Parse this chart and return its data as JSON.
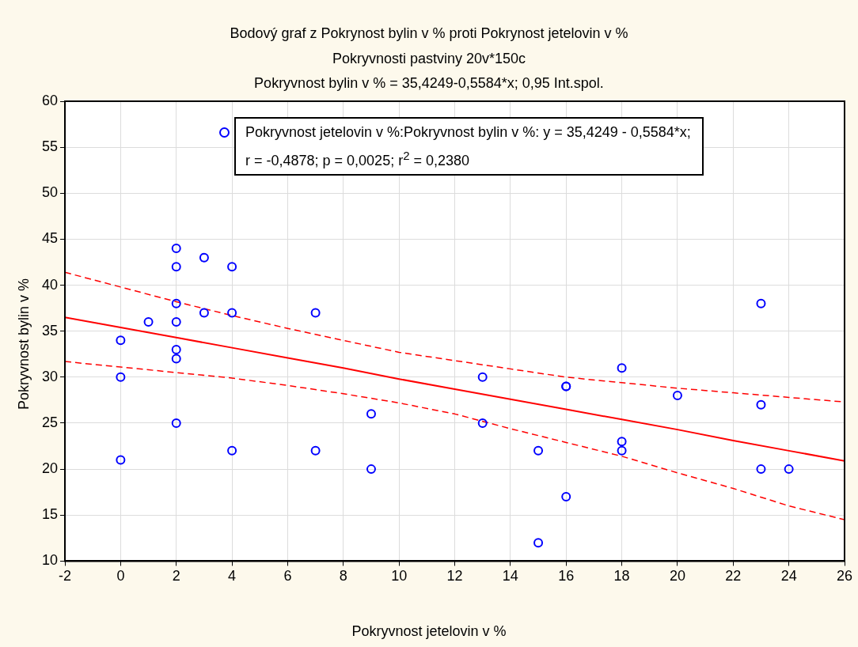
{
  "chart_data": {
    "type": "scatter",
    "title": "Bodový graf z Pokrynost bylin v % proti Pokrynost jetelovin v %",
    "subtitle": "Pokryvnosti pastviny 20v*150c",
    "annotations": [
      "Pokryvnost bylin v % = 35,4249-0,5584*x; 0,95 Int.spol."
    ],
    "xlabel": "Pokryvnost jetelovin v %",
    "ylabel": "Pokryvnost bylin v %",
    "xlim": [
      -2,
      26
    ],
    "xticks": [
      -2,
      0,
      2,
      4,
      6,
      8,
      10,
      12,
      14,
      16,
      18,
      20,
      22,
      24,
      26
    ],
    "ylim": [
      10,
      60
    ],
    "yticks": [
      10,
      15,
      20,
      25,
      30,
      35,
      40,
      45,
      50,
      55,
      60
    ],
    "grid": true,
    "legend": "top",
    "marker": "circle",
    "series": [
      {
        "name": "Pokryvnost jetelovin v %:Pokryvnost bylin v %:   y = 35,4249 - 0,5584*x;\nr = -0,4878; p = 0,0025; r$^{2}$ = 0,2380",
        "color": "#0000ff",
        "x": [
          0,
          0,
          0,
          1,
          2,
          2,
          2,
          2,
          2,
          2,
          2,
          3,
          3,
          4,
          4,
          4,
          7,
          7,
          9,
          9,
          13,
          13,
          15,
          15,
          16,
          16,
          16,
          18,
          18,
          18,
          20,
          23,
          23,
          23,
          24
        ],
        "values": [
          34,
          30,
          21,
          36,
          44,
          42,
          38,
          36,
          33,
          32,
          25,
          43,
          37,
          42,
          37,
          22,
          37,
          22,
          26,
          20,
          30,
          25,
          22,
          12,
          29,
          29,
          17,
          31,
          23,
          22,
          28,
          38,
          27,
          20,
          20
        ]
      },
      {
        "type": "line",
        "color": "#ff0000",
        "line_style": "solid",
        "marker": "none",
        "x": [
          -2,
          0,
          2,
          4,
          6,
          8,
          10,
          12,
          14,
          16,
          18,
          20,
          22,
          24,
          26
        ],
        "values": [
          36.5,
          35.4,
          34.3,
          33.2,
          32.1,
          31.0,
          29.8,
          28.7,
          27.6,
          26.5,
          25.4,
          24.3,
          23.1,
          22.0,
          20.9
        ]
      },
      {
        "type": "line",
        "color": "#ff0000",
        "line_style": "dashed",
        "marker": "none",
        "x": [
          -2,
          0,
          2,
          4,
          6,
          8,
          10,
          12,
          14,
          16,
          18,
          20,
          22,
          24,
          26
        ],
        "values": [
          31.7,
          31.1,
          30.5,
          29.9,
          29.1,
          28.2,
          27.2,
          26.0,
          24.4,
          22.9,
          21.4,
          19.6,
          17.9,
          16.0,
          14.5
        ]
      },
      {
        "type": "line",
        "color": "#ff0000",
        "line_style": "dashed",
        "marker": "none",
        "x": [
          -2,
          0,
          2,
          4,
          6,
          8,
          10,
          12,
          14,
          16,
          18,
          20,
          22,
          24,
          26
        ],
        "values": [
          41.4,
          39.8,
          38.2,
          36.7,
          35.3,
          34.0,
          32.7,
          31.8,
          30.9,
          30.0,
          29.4,
          28.8,
          28.3,
          27.8,
          27.3
        ]
      }
    ]
  }
}
